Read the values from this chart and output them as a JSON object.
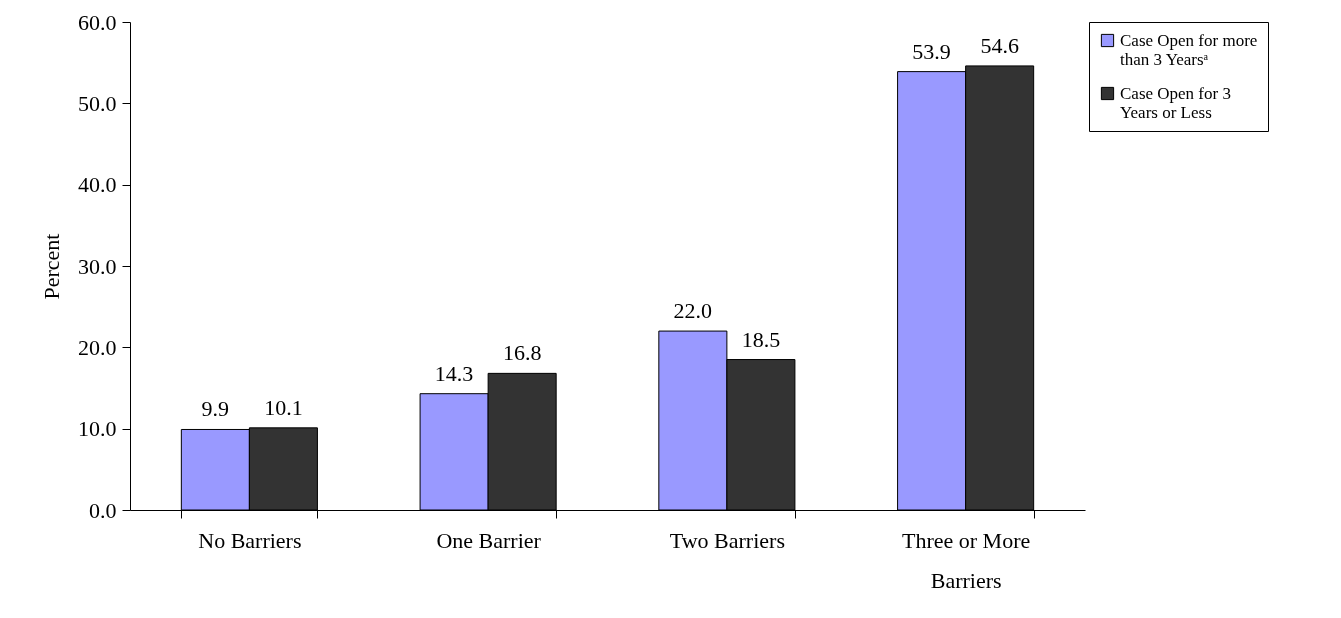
{
  "chart_data": {
    "type": "bar",
    "ylabel": "Percent",
    "categories": [
      "No Barriers",
      "One Barrier",
      "Two Barriers",
      "Three or More Barriers"
    ],
    "series": [
      {
        "name": "Case Open for more than 3 Yearsᵃ",
        "color": "#9999ff",
        "values": [
          9.9,
          14.3,
          22.0,
          53.9
        ],
        "value_labels": [
          "9.9",
          "14.3",
          "22.0",
          "53.9"
        ]
      },
      {
        "name": "Case Open for 3 Years or Less",
        "color": "#333333",
        "values": [
          10.1,
          16.8,
          18.5,
          54.6
        ],
        "value_labels": [
          "10.1",
          "16.8",
          "18.5",
          "54.6"
        ]
      }
    ],
    "ylim": [
      0,
      60
    ],
    "yticks": [
      {
        "value": 0,
        "label": "0.0"
      },
      {
        "value": 10,
        "label": "10.0"
      },
      {
        "value": 20,
        "label": "20.0"
      },
      {
        "value": 30,
        "label": "30.0"
      },
      {
        "value": 40,
        "label": "40.0"
      },
      {
        "value": 50,
        "label": "50.0"
      },
      {
        "value": 60,
        "label": "60.0"
      }
    ],
    "legend": "top right",
    "grid": false
  }
}
